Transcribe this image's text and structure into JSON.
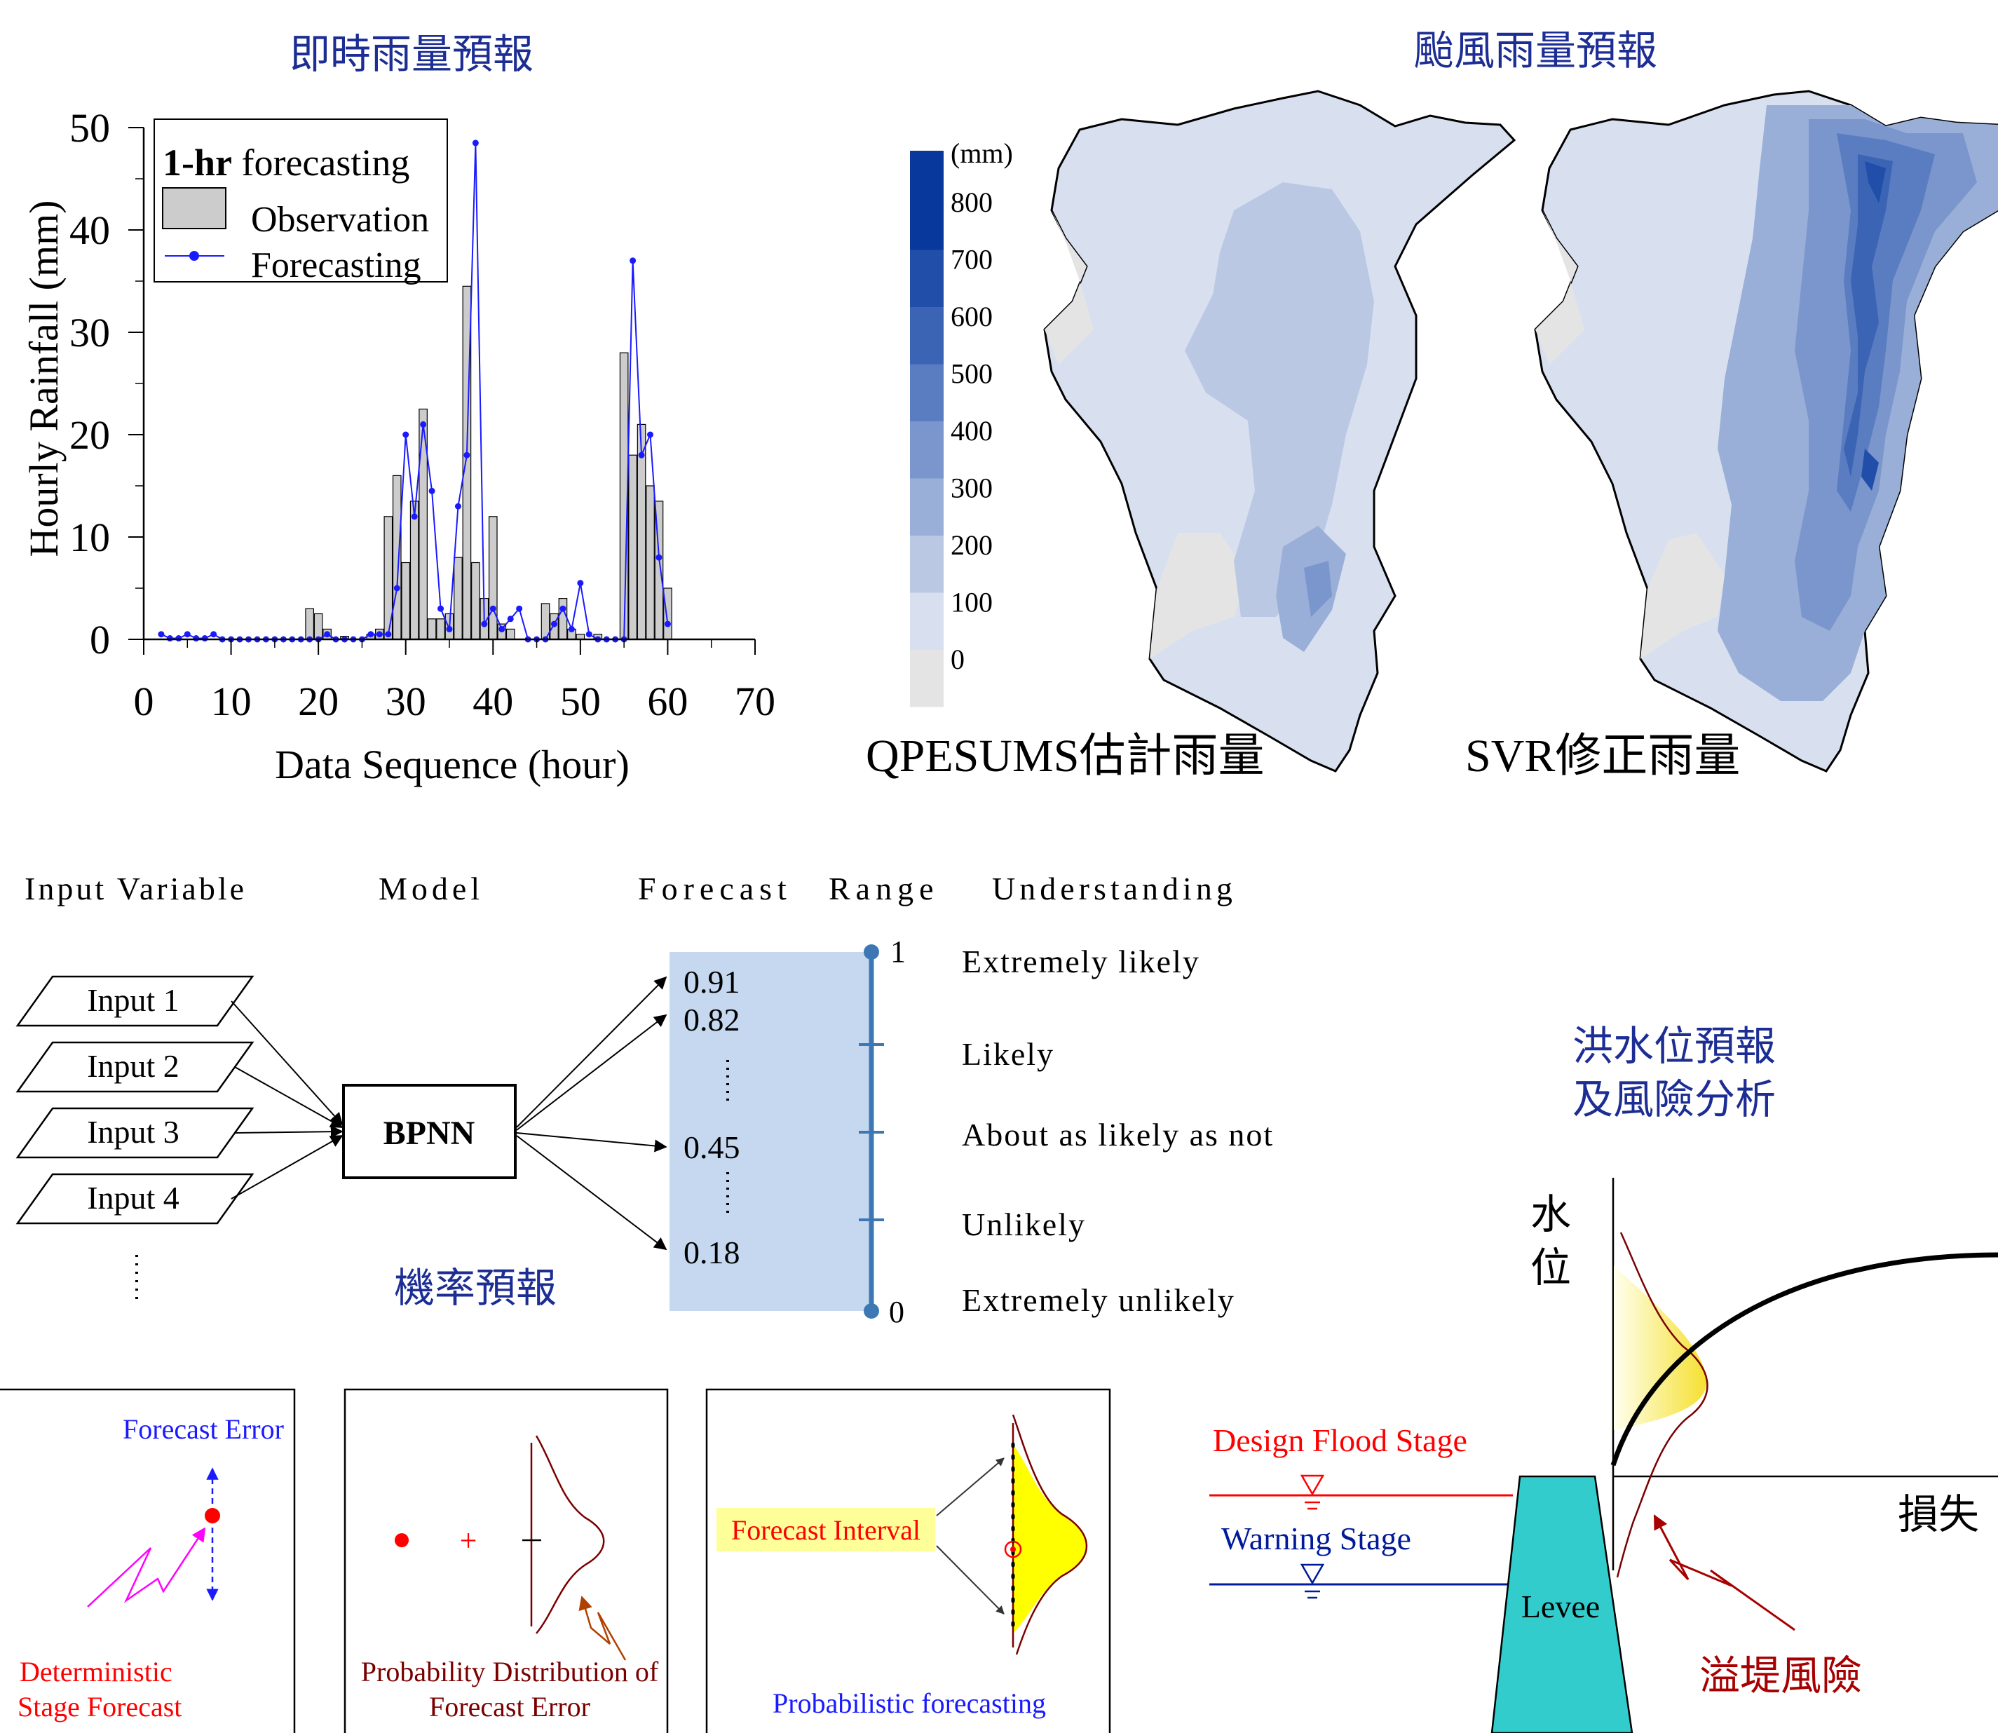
{
  "titles": {
    "instant_rainfall": "即時雨量預報",
    "typhoon_rainfall": "颱風雨量預報",
    "probability_forecast": "機率預報",
    "flood_stage_line1": "洪水位預報",
    "flood_stage_line2": "及風險分析"
  },
  "chart_data": {
    "type": "bar",
    "title": "",
    "xlabel": "Data Sequence (hour)",
    "ylabel": "Hourly Rainfall (mm)",
    "xlim": [
      0,
      70
    ],
    "ylim": [
      0,
      50
    ],
    "xticks": [
      0,
      10,
      20,
      30,
      40,
      50,
      60,
      70
    ],
    "yticks": [
      0,
      10,
      20,
      30,
      40,
      50
    ],
    "legend": {
      "placement": "top-left",
      "heading_bold": "1-hr",
      "heading_rest": " forecasting",
      "entries": [
        "Observation",
        "Forecasting"
      ]
    },
    "observation": [
      [
        19,
        3
      ],
      [
        20,
        2.5
      ],
      [
        21,
        1
      ],
      [
        23,
        0.3
      ],
      [
        26,
        0.5
      ],
      [
        27,
        1
      ],
      [
        28,
        12
      ],
      [
        29,
        16
      ],
      [
        30,
        7.5
      ],
      [
        31,
        13.5
      ],
      [
        32,
        22.5
      ],
      [
        33,
        2
      ],
      [
        34,
        2
      ],
      [
        35,
        2.5
      ],
      [
        36,
        8
      ],
      [
        37,
        34.5
      ],
      [
        38,
        7.5
      ],
      [
        39,
        4
      ],
      [
        40,
        12
      ],
      [
        41,
        1.5
      ],
      [
        42,
        1
      ],
      [
        46,
        3.5
      ],
      [
        47,
        2.5
      ],
      [
        48,
        4
      ],
      [
        49,
        1
      ],
      [
        50,
        0.5
      ],
      [
        52,
        0.5
      ],
      [
        55,
        28
      ],
      [
        56,
        18
      ],
      [
        57,
        21
      ],
      [
        58,
        15
      ],
      [
        59,
        13.5
      ],
      [
        60,
        5
      ]
    ],
    "forecasting": [
      [
        2,
        0.5
      ],
      [
        3,
        0.1
      ],
      [
        4,
        0.1
      ],
      [
        5,
        0.5
      ],
      [
        6,
        0.1
      ],
      [
        7,
        0.1
      ],
      [
        8,
        0.5
      ],
      [
        9,
        0
      ],
      [
        10,
        0
      ],
      [
        11,
        0
      ],
      [
        12,
        0
      ],
      [
        13,
        0
      ],
      [
        14,
        0
      ],
      [
        15,
        0
      ],
      [
        16,
        0
      ],
      [
        17,
        0
      ],
      [
        18,
        0
      ],
      [
        19,
        0
      ],
      [
        20,
        0
      ],
      [
        21,
        0.5
      ],
      [
        22,
        0
      ],
      [
        23,
        0
      ],
      [
        24,
        0
      ],
      [
        25,
        0
      ],
      [
        26,
        0.5
      ],
      [
        27,
        0.5
      ],
      [
        28,
        0.5
      ],
      [
        29,
        5
      ],
      [
        30,
        20
      ],
      [
        31,
        12
      ],
      [
        32,
        21
      ],
      [
        33,
        14.5
      ],
      [
        34,
        3
      ],
      [
        35,
        1
      ],
      [
        36,
        13
      ],
      [
        37,
        18
      ],
      [
        38,
        48.5
      ],
      [
        39,
        1.5
      ],
      [
        40,
        3
      ],
      [
        41,
        1
      ],
      [
        42,
        2
      ],
      [
        43,
        3
      ],
      [
        44,
        0
      ],
      [
        45,
        0
      ],
      [
        46,
        0
      ],
      [
        47,
        1.5
      ],
      [
        48,
        3
      ],
      [
        49,
        1
      ],
      [
        50,
        5.5
      ],
      [
        51,
        0.5
      ],
      [
        52,
        0
      ],
      [
        53,
        0
      ],
      [
        54,
        0
      ],
      [
        55,
        0
      ],
      [
        56,
        37
      ],
      [
        57,
        18
      ],
      [
        58,
        20
      ],
      [
        59,
        8
      ],
      [
        60,
        1.5
      ]
    ]
  },
  "colorbar": {
    "unit": "(mm)",
    "ticks": [
      "800",
      "700",
      "600",
      "500",
      "400",
      "300",
      "200",
      "100",
      "0"
    ],
    "colors": [
      "#08389c",
      "#204ea8",
      "#3c64b4",
      "#5a7cc0",
      "#7a96cc",
      "#9aafd8",
      "#bac8e4",
      "#d8e0f0",
      "#e4e4e4"
    ]
  },
  "map_labels": {
    "left": "QPESUMS估計雨量",
    "right": "SVR修正雨量"
  },
  "bpnn": {
    "headers": {
      "input": "Input Variable",
      "model": "Model",
      "forecast": "Forecast",
      "range": "Range",
      "understanding": "Understanding"
    },
    "inputs": [
      "Input 1",
      "Input 2",
      "Input 3",
      "Input 4"
    ],
    "model_label": "BPNN",
    "forecast_values": [
      "0.91",
      "0.82",
      "0.45",
      "0.18"
    ],
    "range_top": "1",
    "range_bottom": "0",
    "understanding": [
      "Extremely likely",
      "Likely",
      "About as likely as not",
      "Unlikely",
      "Extremely unlikely"
    ]
  },
  "panels": {
    "p1": {
      "error_label": "Forecast Error",
      "det_line1": "Deterministic",
      "det_line2": "Stage Forecast"
    },
    "p2": {
      "plus": "+",
      "label_line1": "Probability Distribution of",
      "label_line2": "Forecast Error"
    },
    "p3": {
      "interval": "Forecast Interval",
      "label": "Probabilistic forecasting"
    }
  },
  "levee": {
    "design_flood_stage": "Design Flood Stage",
    "warning_stage": "Warning Stage",
    "levee_label": "Levee",
    "axis_y_char1": "水",
    "axis_y_char2": "位",
    "axis_x": "損失",
    "overtopping_risk": "溢堤風險"
  },
  "colors": {
    "title_blue": "#1c2d94",
    "forecast_blue": "#1a1aff",
    "obs_gray": "#cccccc",
    "range_fill": "#c5d8ef",
    "range_axis": "#3d78b4",
    "levee_teal": "#33cccc",
    "design_red": "#ff0000",
    "warning_navy": "#001a99",
    "risk_darkred": "#a80000"
  }
}
